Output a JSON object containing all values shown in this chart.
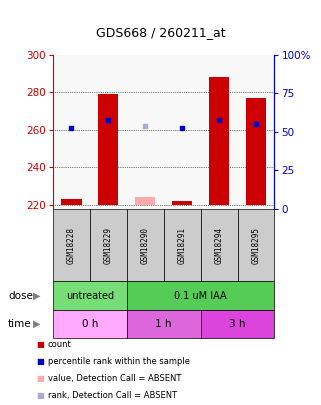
{
  "title": "GDS668 / 260211_at",
  "samples": [
    "GSM18228",
    "GSM18229",
    "GSM18290",
    "GSM18291",
    "GSM18294",
    "GSM18295"
  ],
  "ylim_left": [
    218,
    300
  ],
  "ylim_right": [
    0,
    100
  ],
  "yticks_left": [
    220,
    240,
    260,
    280,
    300
  ],
  "yticks_right": [
    0,
    25,
    50,
    75,
    100
  ],
  "ytick_labels_right": [
    "0",
    "25",
    "50",
    "75",
    "100%"
  ],
  "bar_bottom": 220,
  "counts": [
    223,
    279,
    224,
    222,
    288,
    277
  ],
  "ranks": [
    261,
    265,
    262,
    261,
    265,
    263
  ],
  "absent_mask": [
    false,
    false,
    true,
    false,
    false,
    false
  ],
  "bar_color_present": "#cc0000",
  "bar_color_absent": "#ffaaaa",
  "dot_color_present": "#0000cc",
  "dot_color_absent": "#aaaadd",
  "bar_width": 0.55,
  "dose_untreated_color": "#77dd77",
  "dose_iaa_color": "#55cc55",
  "time_0h_color": "#ffaaff",
  "time_1h_color": "#dd66dd",
  "time_3h_color": "#dd44dd",
  "legend_items": [
    {
      "color": "#cc0000",
      "label": "count"
    },
    {
      "color": "#0000cc",
      "label": "percentile rank within the sample"
    },
    {
      "color": "#ffaaaa",
      "label": "value, Detection Call = ABSENT"
    },
    {
      "color": "#aaaadd",
      "label": "rank, Detection Call = ABSENT"
    }
  ],
  "left_axis_color": "#cc0000",
  "right_axis_color": "#0000cc",
  "sample_box_color": "#cccccc",
  "plot_bg_color": "#f8f8f8"
}
